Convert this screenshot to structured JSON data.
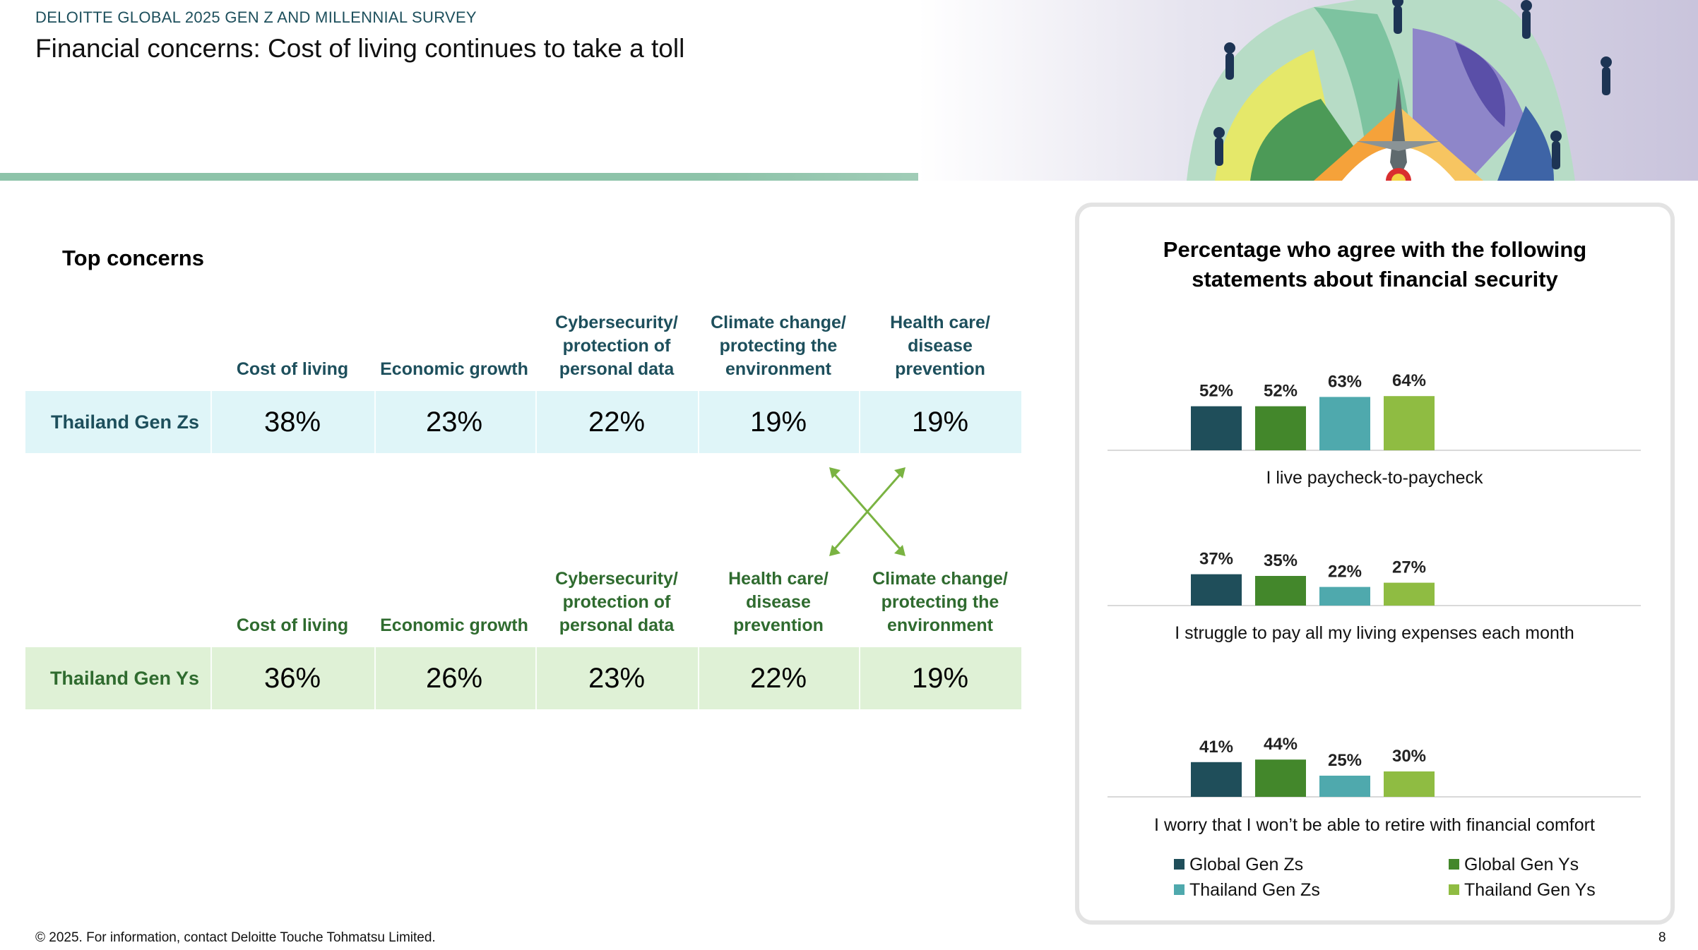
{
  "header": {
    "survey_label": "DELOITTE GLOBAL 2025 GEN Z AND MILLENNIAL SURVEY",
    "title": "Financial concerns: Cost of living continues to take a toll"
  },
  "concerns": {
    "section_title": "Top concerns",
    "gen_zs": {
      "row_label": "Thailand Gen Zs",
      "items": [
        {
          "label": "Cost of living",
          "value": "38%"
        },
        {
          "label": "Economic growth",
          "value": "23%"
        },
        {
          "label": "Cybersecurity/\nprotection of\npersonal data",
          "value": "22%"
        },
        {
          "label": "Climate change/\nprotecting the\nenvironment",
          "value": "19%"
        },
        {
          "label": "Health care/\ndisease\nprevention",
          "value": "19%"
        }
      ]
    },
    "gen_ys": {
      "row_label": "Thailand Gen Ys",
      "items": [
        {
          "label": "Cost of living",
          "value": "36%"
        },
        {
          "label": "Economic growth",
          "value": "26%"
        },
        {
          "label": "Cybersecurity/\nprotection of\npersonal data",
          "value": "23%"
        },
        {
          "label": "Health care/\ndisease\nprevention",
          "value": "22%"
        },
        {
          "label": "Climate change/\nprotecting the\nenvironment",
          "value": "19%"
        }
      ]
    },
    "arrow_color": "#7ab342"
  },
  "chart_data": {
    "type": "bar",
    "title": "Percentage who agree with the following statements about financial security",
    "categories": [
      "I live paycheck-to-paycheck",
      "I struggle to pay all my living expenses each month",
      "I worry that I won’t be able to retire with financial comfort"
    ],
    "series": [
      {
        "name": "Global Gen Zs",
        "color": "#1f4e5a",
        "values": [
          52,
          37,
          41
        ]
      },
      {
        "name": "Global Gen Ys",
        "color": "#43872b",
        "values": [
          52,
          35,
          44
        ]
      },
      {
        "name": "Thailand Gen Zs",
        "color": "#4fa9ad",
        "values": [
          63,
          22,
          25
        ]
      },
      {
        "name": "Thailand Gen Ys",
        "color": "#8fbc42",
        "values": [
          64,
          27,
          30
        ]
      }
    ],
    "value_suffix": "%",
    "legend_position": "bottom",
    "grid": false
  },
  "footer": {
    "note": "© 2025. For information, contact Deloitte Touche Tohmatsu Limited.",
    "page_number": "8"
  }
}
